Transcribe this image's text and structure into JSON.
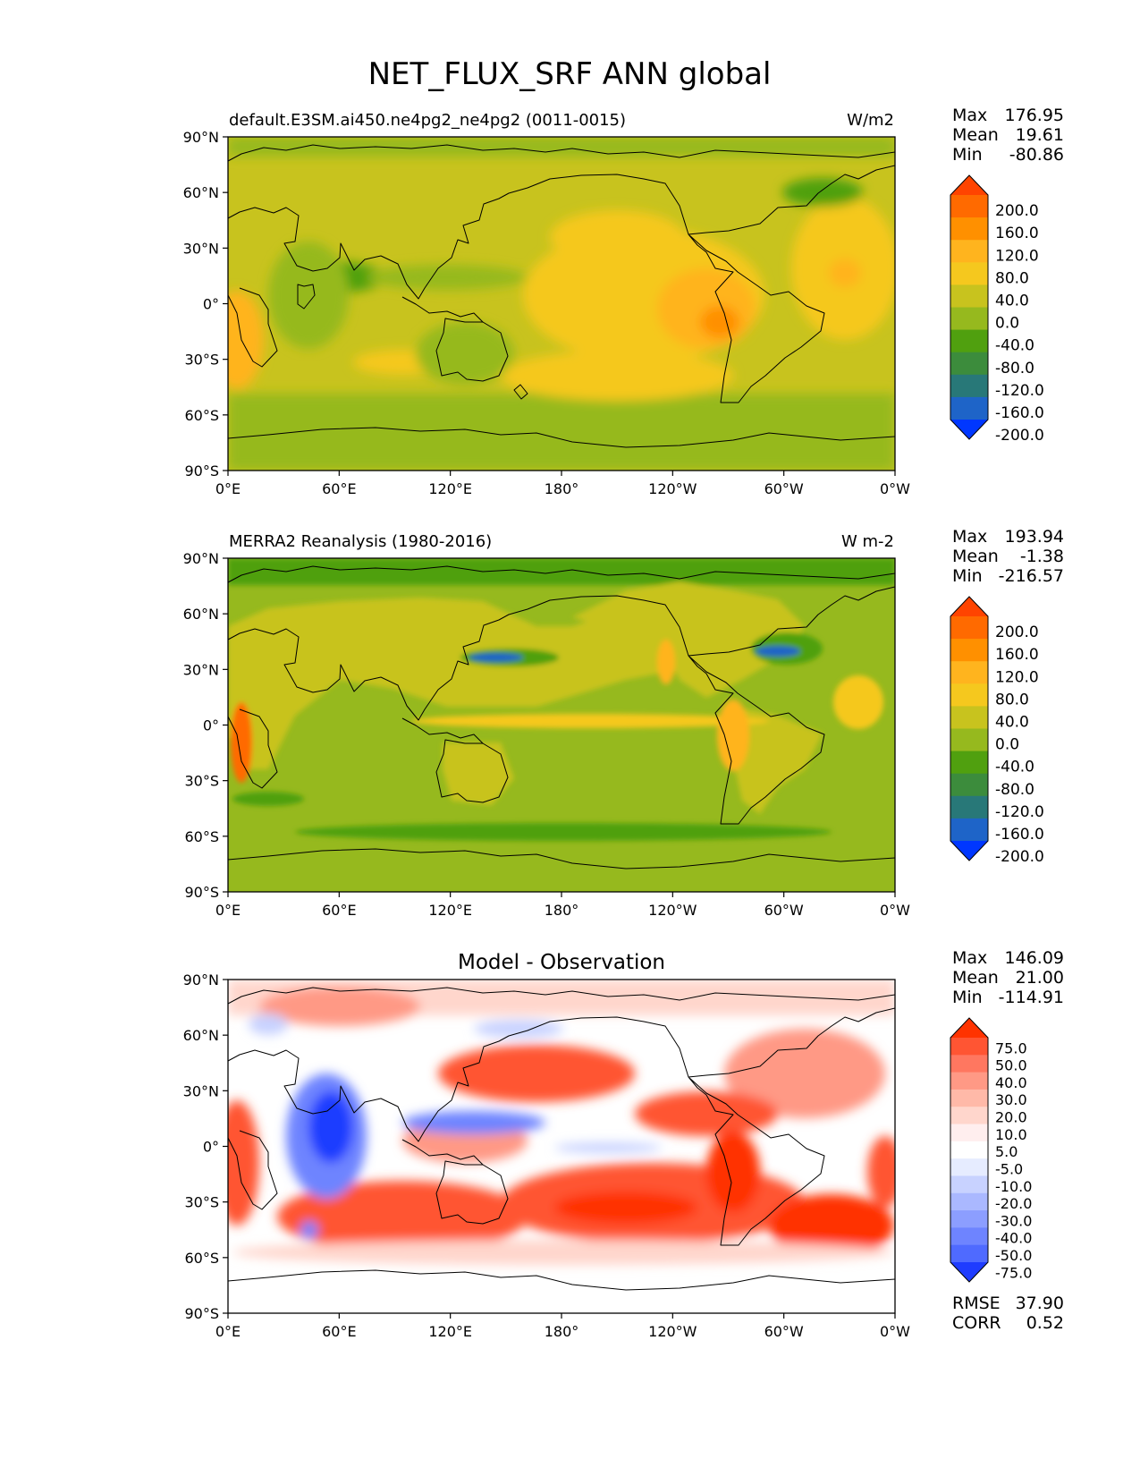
{
  "figure": {
    "title": "NET_FLUX_SRF ANN global"
  },
  "axes": {
    "lat_ticks": [
      "90°N",
      "60°N",
      "30°N",
      "0°",
      "30°S",
      "60°S",
      "90°S"
    ],
    "lon_ticks": [
      "0°E",
      "60°E",
      "120°E",
      "180°",
      "120°W",
      "60°W",
      "0°W"
    ]
  },
  "panels": [
    {
      "id": "test",
      "title_left": "default.E3SM.ai450.ne4pg2_ne4pg2 (0011-0015)",
      "title_center": "",
      "units": "W/m2",
      "stats": {
        "max_label": "Max",
        "max": "176.95",
        "mean_label": "Mean",
        "mean": "19.61",
        "min_label": "Min",
        "min": "-80.86"
      },
      "colorbar": {
        "labels": [
          "200.0",
          "160.0",
          "120.0",
          "80.0",
          "40.0",
          "0.0",
          "-40.0",
          "-80.0",
          "-120.0",
          "-160.0",
          "-200.0"
        ],
        "colors": [
          "#ff4400",
          "#ff6a00",
          "#ff9000",
          "#ffb41e",
          "#f5c81e",
          "#c8c31e",
          "#96b91e",
          "#50a00f",
          "#3c8c3c",
          "#287878",
          "#1e64c8",
          "#0037ff"
        ]
      },
      "field_colors": {
        "base": "#c8c31e",
        "warm": "#f5c81e",
        "warmer": "#ffb41e",
        "hot": "#ff9000",
        "cool": "#96b91e",
        "cold": "#50a00f"
      }
    },
    {
      "id": "reference",
      "title_left": "MERRA2 Reanalysis (1980-2016)",
      "title_center": "",
      "units": "W m-2",
      "stats": {
        "max_label": "Max",
        "max": "193.94",
        "mean_label": "Mean",
        "mean": "-1.38",
        "min_label": "Min",
        "min": "-216.57"
      },
      "colorbar": {
        "labels": [
          "200.0",
          "160.0",
          "120.0",
          "80.0",
          "40.0",
          "0.0",
          "-40.0",
          "-80.0",
          "-120.0",
          "-160.0",
          "-200.0"
        ],
        "colors": [
          "#ff4400",
          "#ff6a00",
          "#ff9000",
          "#ffb41e",
          "#f5c81e",
          "#c8c31e",
          "#96b91e",
          "#50a00f",
          "#3c8c3c",
          "#287878",
          "#1e64c8",
          "#0037ff"
        ]
      },
      "field_colors": {
        "base": "#c8c31e",
        "warm": "#f5c81e",
        "warmer": "#ffb41e",
        "hot": "#ff6a00",
        "cool": "#96b91e",
        "cold": "#50a00f",
        "deep": "#1e64c8"
      }
    },
    {
      "id": "difference",
      "title_left": "",
      "title_center": "Model - Observation",
      "units": "",
      "stats": {
        "max_label": "Max",
        "max": "146.09",
        "mean_label": "Mean",
        "mean": "21.00",
        "min_label": "Min",
        "min": "-114.91"
      },
      "colorbar": {
        "labels": [
          "75.0",
          "50.0",
          "40.0",
          "30.0",
          "20.0",
          "10.0",
          "5.0",
          "-5.0",
          "-10.0",
          "-20.0",
          "-30.0",
          "-40.0",
          "-50.0",
          "-75.0"
        ],
        "colors": [
          "#ff3300",
          "#ff5533",
          "#ff7760",
          "#ff9985",
          "#ffb9a8",
          "#ffd6cc",
          "#ffeeee",
          "#ffffff",
          "#e6ecff",
          "#c8d2ff",
          "#aab8ff",
          "#8c9eff",
          "#6e84ff",
          "#4f6aff",
          "#1f3cff"
        ]
      },
      "field_colors": {
        "base": "#ffffff",
        "light": "#ffd6cc",
        "mid": "#ff9985",
        "strong": "#ff5533",
        "max": "#ff3300",
        "blue_light": "#c8d2ff",
        "blue": "#6e84ff",
        "blue_deep": "#1f3cff"
      },
      "extra_stats": {
        "rmse_label": "RMSE",
        "rmse": "37.90",
        "corr_label": "CORR",
        "corr": "0.52"
      }
    }
  ]
}
